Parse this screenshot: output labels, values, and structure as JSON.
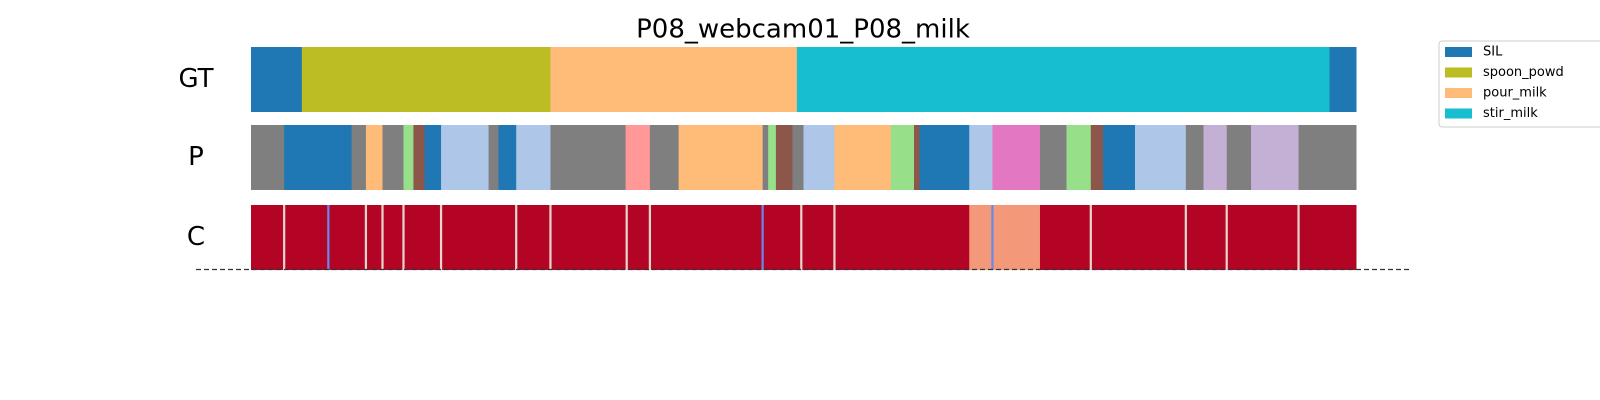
{
  "chart_data": {
    "type": "segmentation",
    "title": "P08_webcam01_P08_milk",
    "xlim": [
      0,
      100
    ],
    "legend": [
      {
        "name": "SIL",
        "color": "#1f77b4"
      },
      {
        "name": "spoon_powd",
        "color": "#bcbd22"
      },
      {
        "name": "pour_milk",
        "color": "#ffbb78"
      },
      {
        "name": "stir_milk",
        "color": "#17becf"
      }
    ],
    "rows": [
      {
        "label": "GT",
        "boundaries": [
          0,
          4.6,
          27.1,
          49.4,
          97.6,
          100
        ],
        "colors": [
          "#1f77b4",
          "#bcbd22",
          "#ffbb78",
          "#17becf",
          "#1f77b4"
        ]
      },
      {
        "label": "P",
        "boundaries": [
          0,
          3.0,
          9.1,
          10.4,
          11.9,
          13.8,
          14.7,
          15.7,
          17.2,
          21.5,
          22.4,
          24.0,
          27.1,
          33.9,
          36.1,
          38.7,
          46.3,
          46.8,
          47.5,
          49.0,
          50.0,
          52.8,
          57.9,
          60.0,
          60.5,
          65.0,
          67.1,
          71.4,
          73.8,
          76.0,
          77.1,
          80.0,
          84.6,
          86.2,
          88.3,
          90.5,
          94.8,
          100
        ],
        "colors": [
          "#7f7f7f",
          "#1f77b4",
          "#7f7f7f",
          "#ffbb78",
          "#7f7f7f",
          "#98df8a",
          "#8c564b",
          "#1f77b4",
          "#aec7e8",
          "#7f7f7f",
          "#1f77b4",
          "#aec7e8",
          "#7f7f7f",
          "#ff9896",
          "#7f7f7f",
          "#ffbb78",
          "#7f7f7f",
          "#98df8a",
          "#8c564b",
          "#7f7f7f",
          "#aec7e8",
          "#ffbb78",
          "#98df8a",
          "#8c564b",
          "#1f77b4",
          "#aec7e8",
          "#e377c2",
          "#7f7f7f",
          "#98df8a",
          "#8c564b",
          "#1f77b4",
          "#aec7e8",
          "#7f7f7f",
          "#c5b0d5",
          "#7f7f7f",
          "#c5b0d5",
          "#7f7f7f"
        ]
      },
      {
        "label": "C",
        "boundaries": [
          0,
          2.9,
          3.1,
          6.9,
          7.1,
          10.3,
          10.5,
          11.8,
          12.0,
          13.7,
          13.9,
          17.1,
          17.3,
          23.9,
          24.1,
          27.0,
          27.2,
          33.9,
          34.1,
          36.0,
          36.2,
          46.2,
          46.4,
          49.7,
          49.9,
          52.7,
          52.9,
          65.0,
          67.0,
          67.2,
          71.4,
          75.9,
          76.1,
          84.5,
          84.7,
          88.2,
          88.4,
          94.7,
          94.9,
          100
        ],
        "colors": [
          "#b40426",
          "#e8d6cc",
          "#b40426",
          "#6788ee",
          "#b40426",
          "#e8d6cc",
          "#b40426",
          "#e8d6cc",
          "#b40426",
          "#e8d6cc",
          "#b40426",
          "#e8d6cc",
          "#b40426",
          "#e8d6cc",
          "#b40426",
          "#e8d6cc",
          "#b40426",
          "#e8d6cc",
          "#b40426",
          "#e8d6cc",
          "#b40426",
          "#6788ee",
          "#b40426",
          "#e8d6cc",
          "#b40426",
          "#e8d6cc",
          "#b40426",
          "#f4987a",
          "#6788ee",
          "#f4987a",
          "#b40426",
          "#e8d6cc",
          "#b40426",
          "#e8d6cc",
          "#b40426",
          "#e8d6cc",
          "#b40426",
          "#e8d6cc",
          "#b40426"
        ]
      }
    ]
  }
}
